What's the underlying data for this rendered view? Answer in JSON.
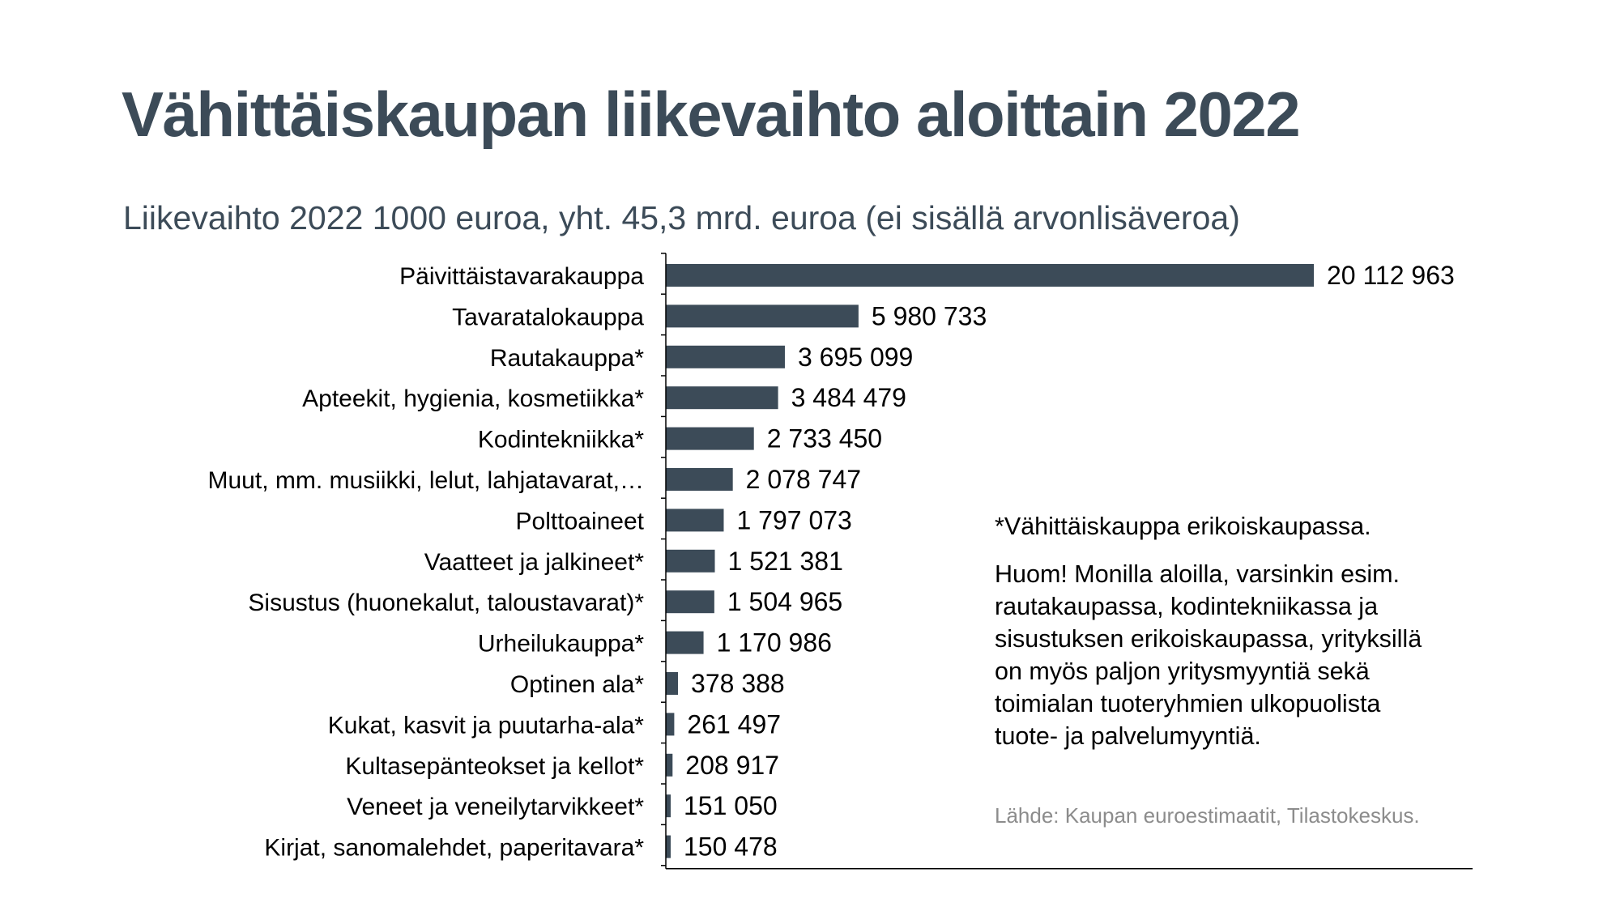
{
  "title": "Vähittäiskaupan liikevaihto aloittain 2022",
  "subtitle": "Liikevaihto 2022 1000 euroa, yht. 45,3 mrd. euroa (ei sisällä arvonlisäveroa)",
  "footnote": "*Vähittäiskauppa erikoiskaupassa.",
  "remark": "Huom! Monilla aloilla, varsinkin esim. rautakaupassa, kodintekniikassa ja sisustuksen erikoiskaupassa, yrityksillä on myös paljon yritysmyyntiä sekä toimialan tuoteryhmien ulkopuolista tuote- ja palvelumyyntiä.",
  "source": "Lähde: Kaupan euroestimaatit, Tilastokeskus.",
  "colors": {
    "bar": "#3c4b58",
    "title": "#3c4b58",
    "axis": "#000000"
  },
  "chart_data": {
    "type": "bar",
    "orientation": "horizontal",
    "title": "",
    "xlabel": "",
    "ylabel": "",
    "grid": false,
    "legend": "none",
    "xlim": [
      0,
      25000000
    ],
    "categories": [
      "Päivittäistavarakauppa",
      "Tavaratalokauppa",
      "Rautakauppa*",
      "Apteekit, hygienia, kosmetiikka*",
      "Kodintekniikka*",
      "Muut, mm. musiikki, lelut, lahjatavarat,…",
      "Polttoaineet",
      "Vaatteet ja jalkineet*",
      "Sisustus (huonekalut, taloustavarat)*",
      "Urheilukauppa*",
      "Optinen ala*",
      "Kukat, kasvit ja puutarha-ala*",
      "Kultasepänteokset ja kellot*",
      "Veneet ja veneilytarvikkeet*",
      "Kirjat, sanomalehdet, paperitavara*"
    ],
    "values": [
      20112963,
      5980733,
      3695099,
      3484479,
      2733450,
      2078747,
      1797073,
      1521381,
      1504965,
      1170986,
      378388,
      261497,
      208917,
      151050,
      150478
    ],
    "data_labels": [
      "20 112 963",
      "5 980 733",
      "3 695 099",
      "3 484 479",
      "2 733 450",
      "2 078 747",
      "1 797 073",
      "1 521 381",
      "1 504 965",
      "1 170 986",
      "378 388",
      "261 497",
      "208 917",
      "151 050",
      "150 478"
    ]
  }
}
